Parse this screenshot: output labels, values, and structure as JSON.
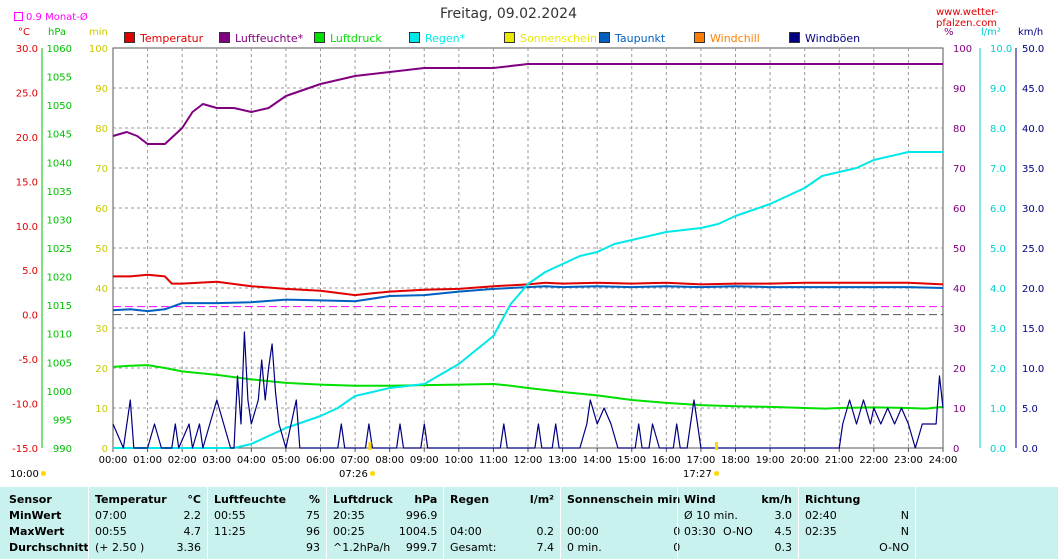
{
  "header": {
    "title": "Freitag, 09.02.2024",
    "site": "www.wetter-pfalzen.com",
    "month_avg": "0.9 Monat-Ø"
  },
  "units": {
    "celsius": "°C",
    "hpa": "hPa",
    "min": "min",
    "percent": "%",
    "l_m2": "l/m²",
    "kmh": "km/h"
  },
  "legend": [
    {
      "label": "Temperatur",
      "color": "#e00000"
    },
    {
      "label": "Luftfeuchte*",
      "color": "#800080"
    },
    {
      "label": "Luftdruck",
      "color": "#00e000"
    },
    {
      "label": "Regen*",
      "color": "#00e8e8"
    },
    {
      "label": "Sonnenschein",
      "color": "#e8e800"
    },
    {
      "label": "Taupunkt",
      "color": "#0060c0"
    },
    {
      "label": "Windchill",
      "color": "#ff8000"
    },
    {
      "label": "Windböen",
      "color": "#000080"
    }
  ],
  "sun": {
    "sunrise_left": "10:00",
    "sunrise": "07:26",
    "sunset": "17:27"
  },
  "chart_data": {
    "type": "line",
    "x_ticks": [
      "00:00",
      "01:00",
      "02:00",
      "03:00",
      "04:00",
      "05:00",
      "06:00",
      "07:00",
      "08:00",
      "09:00",
      "10:00",
      "11:00",
      "12:00",
      "13:00",
      "14:00",
      "15:00",
      "16:00",
      "17:00",
      "18:00",
      "19:00",
      "20:00",
      "21:00",
      "22:00",
      "23:00",
      "24:00"
    ],
    "axes": {
      "temperature": {
        "label": "°C",
        "ticks": [
          "30.0",
          "25.0",
          "20.0",
          "15.0",
          "10.0",
          "5.0",
          "0.0",
          "-5.0",
          "-10.0",
          "-15.0"
        ],
        "range": [
          -15,
          30
        ]
      },
      "pressure": {
        "label": "hPa",
        "ticks": [
          "1060",
          "1055",
          "1050",
          "1045",
          "1040",
          "1035",
          "1030",
          "1025",
          "1020",
          "1015",
          "1010",
          "1005",
          "1000",
          "995",
          "990"
        ],
        "range": [
          990,
          1060
        ]
      },
      "sunshine": {
        "label": "min",
        "ticks": [
          "100",
          "90",
          "80",
          "70",
          "60",
          "50",
          "40",
          "30",
          "20",
          "10",
          "0"
        ],
        "range": [
          0,
          100
        ]
      },
      "humidity": {
        "label": "%",
        "ticks": [
          "100",
          "90",
          "80",
          "70",
          "60",
          "50",
          "40",
          "30",
          "20",
          "10",
          "0"
        ],
        "range": [
          0,
          100
        ]
      },
      "rain": {
        "label": "l/m²",
        "ticks": [
          "10.0",
          "9.0",
          "8.0",
          "7.0",
          "6.0",
          "5.0",
          "4.0",
          "3.0",
          "2.0",
          "1.0",
          "0.0"
        ],
        "range": [
          0,
          10
        ]
      },
      "wind": {
        "label": "km/h",
        "ticks": [
          "50.0",
          "45.0",
          "40.0",
          "35.0",
          "30.0",
          "25.0",
          "20.0",
          "15.0",
          "10.0",
          "5.0",
          "0.0"
        ],
        "range": [
          0,
          50
        ]
      }
    },
    "series": [
      {
        "name": "Temperatur",
        "axis": "temperature",
        "color": "#e00000",
        "points": [
          [
            0,
            4.3
          ],
          [
            0.5,
            4.3
          ],
          [
            1,
            4.5
          ],
          [
            1.5,
            4.3
          ],
          [
            1.7,
            3.5
          ],
          [
            2,
            3.5
          ],
          [
            3,
            3.7
          ],
          [
            4,
            3.2
          ],
          [
            5,
            2.9
          ],
          [
            6,
            2.7
          ],
          [
            7,
            2.2
          ],
          [
            7.5,
            2.4
          ],
          [
            8,
            2.6
          ],
          [
            9,
            2.8
          ],
          [
            10,
            2.9
          ],
          [
            11,
            3.2
          ],
          [
            12,
            3.4
          ],
          [
            12.5,
            3.6
          ],
          [
            13,
            3.5
          ],
          [
            14,
            3.6
          ],
          [
            15,
            3.5
          ],
          [
            16,
            3.6
          ],
          [
            17,
            3.4
          ],
          [
            18,
            3.5
          ],
          [
            19,
            3.5
          ],
          [
            20,
            3.6
          ],
          [
            21,
            3.6
          ],
          [
            22,
            3.6
          ],
          [
            23,
            3.6
          ],
          [
            24,
            3.4
          ]
        ]
      },
      {
        "name": "Taupunkt",
        "axis": "temperature",
        "color": "#0060c0",
        "points": [
          [
            0,
            0.5
          ],
          [
            0.5,
            0.6
          ],
          [
            1,
            0.4
          ],
          [
            1.5,
            0.6
          ],
          [
            2,
            1.3
          ],
          [
            3,
            1.3
          ],
          [
            4,
            1.4
          ],
          [
            5,
            1.7
          ],
          [
            6,
            1.6
          ],
          [
            7,
            1.5
          ],
          [
            8,
            2.1
          ],
          [
            9,
            2.2
          ],
          [
            10,
            2.6
          ],
          [
            11,
            2.9
          ],
          [
            12,
            3.1
          ],
          [
            12.5,
            3.2
          ],
          [
            13,
            3.1
          ],
          [
            14,
            3.2
          ],
          [
            15,
            3.1
          ],
          [
            16,
            3.2
          ],
          [
            17,
            3.1
          ],
          [
            18,
            3.2
          ],
          [
            19,
            3.1
          ],
          [
            20,
            3.1
          ],
          [
            21,
            3.1
          ],
          [
            22,
            3.1
          ],
          [
            23,
            3.1
          ],
          [
            24,
            3.0
          ]
        ]
      },
      {
        "name": "Luftfeuchte*",
        "axis": "humidity",
        "color": "#800080",
        "points": [
          [
            0,
            78
          ],
          [
            0.4,
            79
          ],
          [
            0.7,
            78
          ],
          [
            1,
            76
          ],
          [
            1.5,
            76
          ],
          [
            2,
            80
          ],
          [
            2.3,
            84
          ],
          [
            2.6,
            86
          ],
          [
            3,
            85
          ],
          [
            3.5,
            85
          ],
          [
            4,
            84
          ],
          [
            4.5,
            85
          ],
          [
            5,
            88
          ],
          [
            6,
            91
          ],
          [
            7,
            93
          ],
          [
            8,
            94
          ],
          [
            9,
            95
          ],
          [
            10,
            95
          ],
          [
            11,
            95
          ],
          [
            12,
            96
          ],
          [
            13,
            96
          ],
          [
            14,
            96
          ],
          [
            15,
            96
          ],
          [
            16,
            96
          ],
          [
            17,
            96
          ],
          [
            18,
            96
          ],
          [
            19,
            96
          ],
          [
            20,
            96
          ],
          [
            21,
            96
          ],
          [
            22,
            96
          ],
          [
            23,
            96
          ],
          [
            24,
            96
          ]
        ]
      },
      {
        "name": "Luftdruck",
        "axis": "pressure",
        "color": "#00e000",
        "points": [
          [
            0,
            1004.2
          ],
          [
            0.5,
            1004.4
          ],
          [
            1,
            1004.5
          ],
          [
            1.5,
            1004
          ],
          [
            2,
            1003.4
          ],
          [
            3,
            1002.8
          ],
          [
            4,
            1002.0
          ],
          [
            5,
            1001.4
          ],
          [
            6,
            1001.1
          ],
          [
            7,
            1000.9
          ],
          [
            8,
            1000.9
          ],
          [
            9,
            1001.0
          ],
          [
            10,
            1001.1
          ],
          [
            11,
            1001.2
          ],
          [
            11.5,
            1000.9
          ],
          [
            12,
            1000.5
          ],
          [
            13,
            999.8
          ],
          [
            14,
            999.2
          ],
          [
            15,
            998.4
          ],
          [
            16,
            997.9
          ],
          [
            17,
            997.5
          ],
          [
            18,
            997.3
          ],
          [
            19,
            997.2
          ],
          [
            20,
            997.0
          ],
          [
            20.6,
            996.9
          ],
          [
            21,
            997.0
          ],
          [
            22,
            997.1
          ],
          [
            23,
            997.0
          ],
          [
            23.5,
            996.9
          ],
          [
            24,
            997.2
          ]
        ]
      },
      {
        "name": "Regen*",
        "axis": "rain",
        "color": "#00e8e8",
        "points": [
          [
            0,
            0
          ],
          [
            3,
            0
          ],
          [
            3.5,
            0
          ],
          [
            4,
            0.1
          ],
          [
            5,
            0.5
          ],
          [
            6,
            0.8
          ],
          [
            6.5,
            1.0
          ],
          [
            7,
            1.3
          ],
          [
            7.5,
            1.4
          ],
          [
            8,
            1.5
          ],
          [
            9,
            1.6
          ],
          [
            10,
            2.1
          ],
          [
            11,
            2.8
          ],
          [
            11.5,
            3.6
          ],
          [
            12,
            4.1
          ],
          [
            12.5,
            4.4
          ],
          [
            13,
            4.6
          ],
          [
            13.5,
            4.8
          ],
          [
            14,
            4.9
          ],
          [
            14.5,
            5.1
          ],
          [
            15,
            5.2
          ],
          [
            16,
            5.4
          ],
          [
            17,
            5.5
          ],
          [
            17.5,
            5.6
          ],
          [
            18,
            5.8
          ],
          [
            19,
            6.1
          ],
          [
            20,
            6.5
          ],
          [
            20.5,
            6.8
          ],
          [
            21,
            6.9
          ],
          [
            21.5,
            7.0
          ],
          [
            22,
            7.2
          ],
          [
            23,
            7.4
          ],
          [
            24,
            7.4
          ]
        ]
      },
      {
        "name": "Windböen",
        "axis": "wind",
        "color": "#000080",
        "points": [
          [
            0,
            3
          ],
          [
            0.3,
            0
          ],
          [
            0.5,
            6
          ],
          [
            0.6,
            0
          ],
          [
            1,
            0
          ],
          [
            1.2,
            3
          ],
          [
            1.4,
            0
          ],
          [
            1.7,
            0
          ],
          [
            1.8,
            3
          ],
          [
            1.9,
            0
          ],
          [
            2.2,
            3
          ],
          [
            2.3,
            0
          ],
          [
            2.5,
            3
          ],
          [
            2.6,
            0
          ],
          [
            2.8,
            3
          ],
          [
            3,
            6
          ],
          [
            3.2,
            3
          ],
          [
            3.4,
            0
          ],
          [
            3.5,
            0
          ],
          [
            3.6,
            9
          ],
          [
            3.7,
            3
          ],
          [
            3.8,
            14.5
          ],
          [
            3.9,
            6
          ],
          [
            4,
            3
          ],
          [
            4.2,
            6
          ],
          [
            4.3,
            11
          ],
          [
            4.4,
            6
          ],
          [
            4.5,
            10
          ],
          [
            4.6,
            13
          ],
          [
            4.7,
            7
          ],
          [
            4.8,
            3
          ],
          [
            5,
            0
          ],
          [
            5.3,
            6
          ],
          [
            5.4,
            0
          ],
          [
            6.5,
            0
          ],
          [
            6.6,
            3
          ],
          [
            6.7,
            0
          ],
          [
            7.3,
            0
          ],
          [
            7.4,
            3
          ],
          [
            7.5,
            0
          ],
          [
            8.2,
            0
          ],
          [
            8.3,
            3
          ],
          [
            8.4,
            0
          ],
          [
            8.9,
            0
          ],
          [
            9,
            3
          ],
          [
            9.1,
            0
          ],
          [
            11.2,
            0
          ],
          [
            11.3,
            3
          ],
          [
            11.4,
            0
          ],
          [
            12.2,
            0
          ],
          [
            12.3,
            3
          ],
          [
            12.4,
            0
          ],
          [
            12.7,
            0
          ],
          [
            12.8,
            3
          ],
          [
            12.9,
            0
          ],
          [
            13.5,
            0
          ],
          [
            13.7,
            3
          ],
          [
            13.8,
            6
          ],
          [
            14,
            3
          ],
          [
            14.2,
            5
          ],
          [
            14.4,
            3
          ],
          [
            14.6,
            0
          ],
          [
            15.1,
            0
          ],
          [
            15.2,
            3
          ],
          [
            15.3,
            0
          ],
          [
            15.5,
            0
          ],
          [
            15.6,
            3
          ],
          [
            15.8,
            0
          ],
          [
            16.2,
            0
          ],
          [
            16.3,
            3
          ],
          [
            16.4,
            0
          ],
          [
            16.6,
            0
          ],
          [
            16.7,
            3
          ],
          [
            16.8,
            6
          ],
          [
            16.9,
            3
          ],
          [
            17,
            0
          ],
          [
            21,
            0
          ],
          [
            21.1,
            3
          ],
          [
            21.3,
            6
          ],
          [
            21.5,
            3
          ],
          [
            21.7,
            6
          ],
          [
            21.9,
            3
          ],
          [
            22,
            5
          ],
          [
            22.2,
            3
          ],
          [
            22.4,
            5
          ],
          [
            22.6,
            3
          ],
          [
            22.8,
            5
          ],
          [
            23,
            3
          ],
          [
            23.2,
            0
          ],
          [
            23.4,
            3
          ],
          [
            23.6,
            3
          ],
          [
            23.8,
            3
          ],
          [
            23.9,
            9
          ],
          [
            24,
            5
          ]
        ]
      }
    ],
    "ref_lines": [
      {
        "axis": "temperature",
        "value": 0.9,
        "color": "#ff00ff",
        "dash": "dashed"
      },
      {
        "axis": "temperature",
        "value": 0.0,
        "color": "#555555",
        "dash": "dashed"
      }
    ]
  },
  "footer": {
    "rows": [
      "Sensor",
      "MinWert",
      "MaxWert",
      "Durchschnitt"
    ],
    "temperature": {
      "head": "Temperatur",
      "unit": "°C",
      "min_time": "07:00",
      "min_val": "2.2",
      "max_time": "00:55",
      "max_val": "4.7",
      "avg_note": "(+ 2.50 )",
      "avg_val": "3.36"
    },
    "humidity": {
      "head": "Luftfeuchte",
      "unit": "%",
      "min_time": "00:55",
      "min_val": "75",
      "max_time": "11:25",
      "max_val": "96",
      "avg_val": "93"
    },
    "pressure": {
      "head": "Luftdruck",
      "unit": "hPa",
      "min_time": "20:35",
      "min_val": "996.9",
      "max_time": "00:25",
      "max_val": "1004.5",
      "avg_note": "^1.2hPa/h",
      "avg_val": "999.7"
    },
    "rain": {
      "head": "Regen",
      "unit": "l/m²",
      "max_time": "04:00",
      "max_val": "0.2",
      "avg_note": "Gesamt:",
      "avg_val": "7.4"
    },
    "sunshine": {
      "head": "Sonnenschein min",
      "max_time": "00:00",
      "max_val": "0",
      "avg_note": "0 min.",
      "avg_val": "0"
    },
    "wind": {
      "head": "Wind",
      "unit": "km/h",
      "min_note": "Ø 10 min.",
      "min_val": "3.0",
      "max_time": "03:30",
      "max_dir": "O-NO",
      "max_val": "4.5",
      "avg_val": "0.3"
    },
    "direction": {
      "head": "Richtung",
      "min_time": "02:40",
      "min_val": "N",
      "max_time": "02:35",
      "max_val": "N",
      "avg_val": "O-NO"
    }
  }
}
